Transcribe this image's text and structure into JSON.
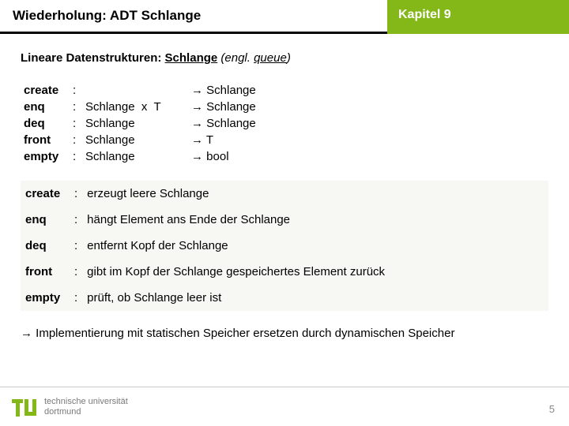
{
  "header": {
    "title": "Wiederholung: ADT Schlange",
    "chapter": "Kapitel 9"
  },
  "section": {
    "label": "Lineare Datenstrukturen:",
    "topic": "Schlange",
    "engl_prefix": " (engl. ",
    "engl_word": "queue",
    "engl_suffix": ")"
  },
  "signatures": [
    {
      "op": "create",
      "lhs": "",
      "rhs": "→ Schlange"
    },
    {
      "op": "enq",
      "lhs": "Schlange  x  T",
      "rhs": "→ Schlange"
    },
    {
      "op": "deq",
      "lhs": "Schlange",
      "rhs": "→ Schlange"
    },
    {
      "op": "front",
      "lhs": "Schlange",
      "rhs": "→ T"
    },
    {
      "op": "empty",
      "lhs": "Schlange",
      "rhs": "→ bool"
    }
  ],
  "descriptions": [
    {
      "op": "create",
      "text": "erzeugt leere Schlange"
    },
    {
      "op": "enq",
      "text": "hängt Element ans Ende der Schlange"
    },
    {
      "op": "deq",
      "text": "entfernt Kopf der Schlange"
    },
    {
      "op": "front",
      "text": "gibt im Kopf der Schlange gespeichertes Element zurück"
    },
    {
      "op": "empty",
      "text": "prüft, ob Schlange leer ist"
    }
  ],
  "conclusion": "→ Implementierung mit statischen Speicher ersetzen durch dynamischen Speicher",
  "footer": {
    "uni_line1": "technische universität",
    "uni_line2": "dortmund",
    "logo_color": "#84b819"
  },
  "page_number": "5",
  "colors": {
    "accent": "#84b819",
    "row_bg": "#f7f7f3"
  }
}
